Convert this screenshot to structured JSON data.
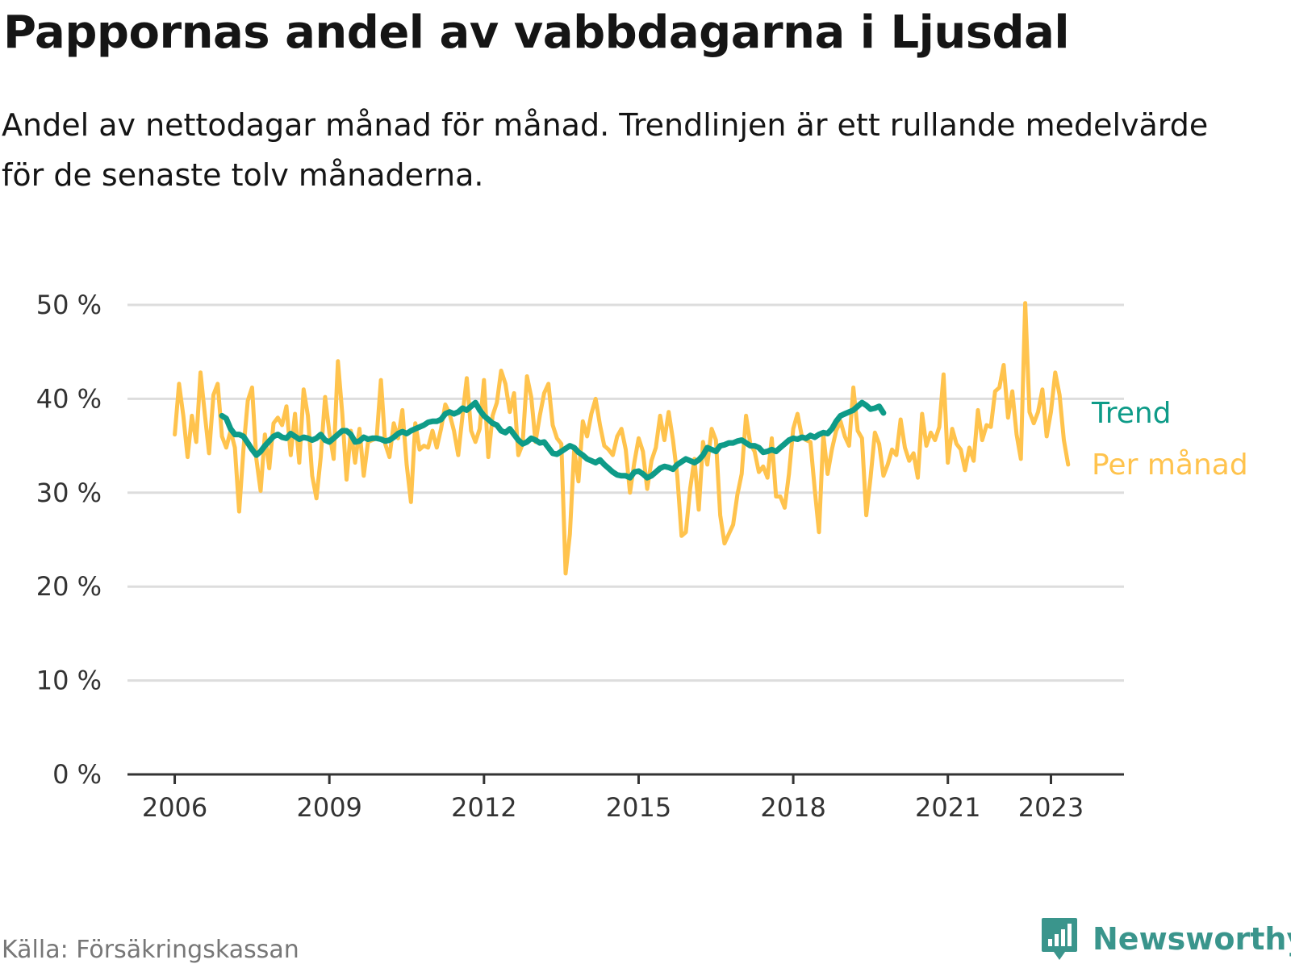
{
  "title": "Pappornas andel av vabbdagarna i Ljusdal",
  "subtitle": "Andel av nettodagar månad för månad. Trendlinjen är ett rullande medelvärde för de senaste tolv månaderna.",
  "source": "Källa: Försäkringskassan",
  "brand": {
    "name": "Newsworthy",
    "icon": "bar-chart-speech-bubble-icon"
  },
  "colors": {
    "per_month": "#ffc34d",
    "trend": "#0e9b88",
    "grid": "#dddddd",
    "axis": "#333333",
    "brand": "#3a958c"
  },
  "chart_data": {
    "type": "line",
    "x_unit": "month",
    "xlim": [
      "2005-02",
      "2024-06"
    ],
    "ylim": [
      0,
      50
    ],
    "y_ticks": [
      0,
      10,
      20,
      30,
      40,
      50
    ],
    "y_tick_labels": [
      "0 %",
      "10 %",
      "20 %",
      "30 %",
      "40 %",
      "50 %"
    ],
    "x_ticks": [
      "2006-01",
      "2009-01",
      "2012-01",
      "2015-01",
      "2018-01",
      "2021-01",
      "2023-01"
    ],
    "x_tick_labels": [
      "2006",
      "2009",
      "2012",
      "2015",
      "2018",
      "2021",
      "2023"
    ],
    "grid": true,
    "series": [
      {
        "name": "Per månad",
        "color": "#ffc34d",
        "start": "2006-01",
        "values": [
          36.2,
          41.6,
          38.2,
          33.8,
          38.2,
          35.4,
          42.8,
          38.4,
          34.2,
          40.4,
          41.6,
          36.0,
          34.8,
          36.6,
          34.8,
          28.0,
          34.6,
          39.8,
          41.2,
          33.6,
          30.2,
          36.2,
          32.6,
          37.4,
          38.0,
          37.2,
          39.2,
          34.0,
          38.4,
          33.2,
          41.0,
          38.2,
          31.8,
          29.4,
          33.8,
          40.2,
          36.4,
          33.6,
          44.0,
          38.4,
          31.4,
          36.6,
          33.2,
          36.8,
          31.8,
          35.4,
          35.6,
          35.8,
          42.0,
          35.2,
          33.8,
          37.4,
          35.8,
          38.8,
          33.0,
          29.0,
          37.4,
          34.6,
          35.0,
          34.8,
          36.6,
          34.8,
          36.8,
          39.4,
          38.4,
          36.6,
          34.0,
          38.2,
          42.2,
          36.6,
          35.4,
          36.8,
          42.0,
          33.8,
          38.2,
          39.6,
          43.0,
          41.6,
          38.6,
          40.6,
          34.0,
          35.2,
          42.4,
          40.2,
          35.4,
          38.2,
          40.6,
          41.6,
          37.2,
          35.8,
          35.2,
          21.4,
          25.6,
          34.6,
          31.2,
          37.6,
          36.0,
          38.4,
          40.0,
          37.2,
          35.0,
          34.6,
          34.0,
          36.0,
          36.8,
          34.6,
          30.0,
          33.2,
          35.8,
          34.4,
          30.4,
          33.4,
          34.8,
          38.2,
          35.6,
          38.6,
          35.6,
          31.8,
          25.4,
          25.8,
          30.4,
          33.6,
          28.2,
          35.4,
          33.0,
          36.8,
          35.6,
          27.6,
          24.6,
          25.6,
          26.6,
          29.8,
          32.0,
          38.2,
          35.2,
          34.4,
          32.2,
          32.8,
          31.6,
          35.8,
          29.6,
          29.6,
          28.4,
          32.0,
          36.8,
          38.4,
          36.0,
          35.6,
          35.4,
          30.4,
          25.8,
          36.2,
          32.0,
          34.6,
          36.6,
          37.6,
          36.0,
          35.0,
          41.2,
          36.6,
          35.8,
          27.6,
          31.6,
          36.4,
          35.2,
          31.8,
          33.0,
          34.6,
          34.0,
          37.8,
          34.8,
          33.4,
          34.2,
          31.6,
          38.4,
          35.0,
          36.4,
          35.6,
          37.0,
          42.6,
          33.2,
          36.8,
          35.2,
          34.6,
          32.4,
          34.8,
          33.4,
          38.8,
          35.6,
          37.2,
          37.0,
          40.8,
          41.2,
          43.6,
          38.0,
          40.8,
          36.2,
          33.6,
          50.2,
          38.6,
          37.4,
          38.6,
          41.0,
          36.0,
          38.6,
          42.8,
          40.4,
          35.6,
          33.0
        ]
      },
      {
        "name": "Trend",
        "color": "#0e9b88",
        "start": "2006-12",
        "values": [
          38.2,
          37.9,
          36.8,
          36.2,
          36.2,
          36.0,
          35.3,
          34.6,
          34.0,
          34.4,
          35.0,
          35.5,
          36.0,
          36.2,
          35.9,
          35.8,
          36.3,
          36.0,
          35.7,
          35.9,
          35.8,
          35.6,
          35.8,
          36.2,
          35.6,
          35.4,
          35.8,
          36.2,
          36.6,
          36.6,
          36.2,
          35.4,
          35.5,
          35.9,
          35.7,
          35.8,
          35.8,
          35.7,
          35.5,
          35.6,
          35.9,
          36.3,
          36.5,
          36.3,
          36.6,
          36.8,
          37.0,
          37.2,
          37.5,
          37.6,
          37.6,
          37.8,
          38.4,
          38.6,
          38.4,
          38.6,
          39.0,
          38.8,
          39.2,
          39.6,
          38.8,
          38.2,
          37.8,
          37.4,
          37.2,
          36.6,
          36.4,
          36.8,
          36.2,
          35.6,
          35.2,
          35.4,
          35.8,
          35.6,
          35.3,
          35.4,
          34.8,
          34.2,
          34.1,
          34.4,
          34.7,
          35.0,
          34.8,
          34.3,
          34.0,
          33.6,
          33.4,
          33.2,
          33.5,
          33.0,
          32.6,
          32.2,
          31.9,
          31.8,
          31.8,
          31.6,
          32.2,
          32.3,
          32.0,
          31.6,
          31.8,
          32.2,
          32.6,
          32.8,
          32.7,
          32.5,
          33.0,
          33.3,
          33.6,
          33.4,
          33.2,
          33.5,
          34.0,
          34.8,
          34.6,
          34.4,
          35.0,
          35.1,
          35.3,
          35.3,
          35.5,
          35.6,
          35.3,
          35.0,
          35.0,
          34.8,
          34.3,
          34.4,
          34.6,
          34.4,
          34.8,
          35.2,
          35.6,
          35.8,
          35.7,
          35.9,
          35.8,
          36.1,
          35.9,
          36.2,
          36.4,
          36.3,
          36.8,
          37.6,
          38.2,
          38.4,
          38.6,
          38.8,
          39.2,
          39.6,
          39.3,
          38.9,
          39.0,
          39.2,
          38.5
        ]
      }
    ],
    "series_labels": [
      "Trend",
      "Per månad"
    ]
  }
}
